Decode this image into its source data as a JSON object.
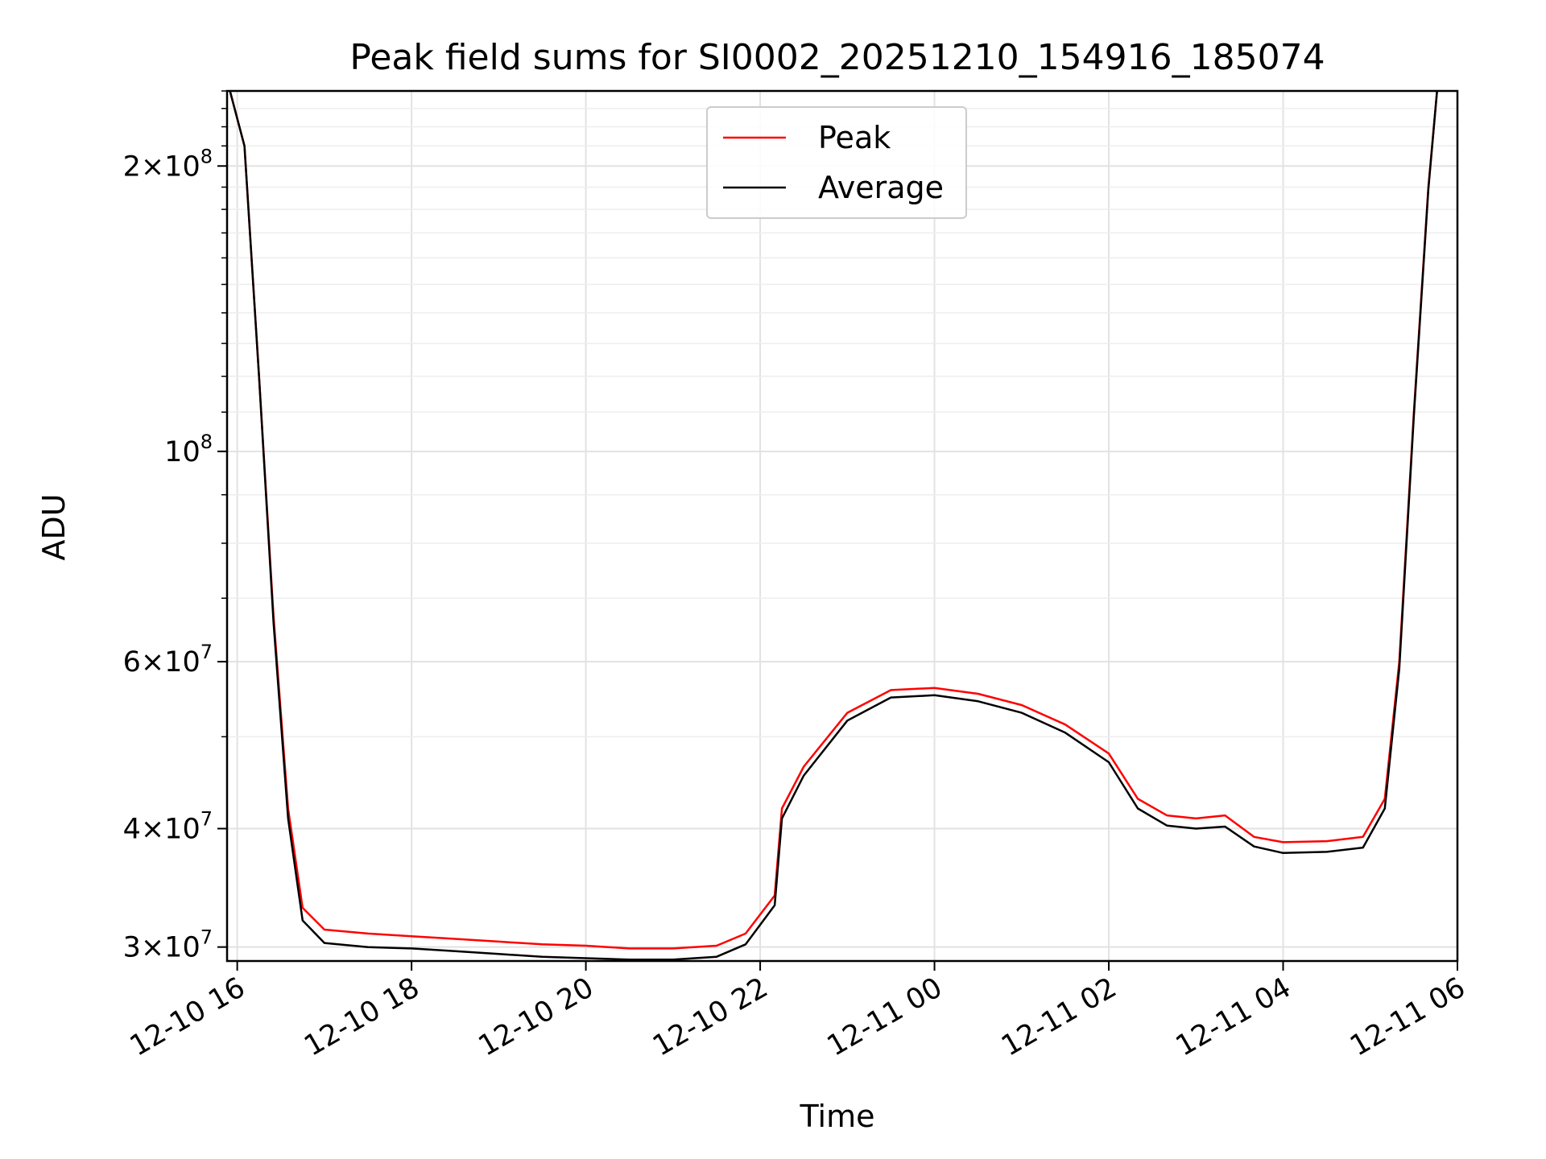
{
  "chart_data": {
    "type": "line",
    "title": "Peak field sums for SI0002_20251210_154916_185074",
    "xlabel": "Time",
    "ylabel": "ADU",
    "y_scale": "log",
    "ylim": [
      29000000,
      240000000
    ],
    "xlim": [
      "2025-12-10 15:53",
      "2025-12-11 06:00"
    ],
    "grid": true,
    "legend_position": "upper-center",
    "x_ticks": [
      "12-10 16",
      "12-10 18",
      "12-10 20",
      "12-10 22",
      "12-11 00",
      "12-11 02",
      "12-11 04",
      "12-11 06"
    ],
    "y_ticks": [
      {
        "value": 30000000,
        "mantissa": "3",
        "exp": "7"
      },
      {
        "value": 40000000,
        "mantissa": "4",
        "exp": "7"
      },
      {
        "value": 60000000,
        "mantissa": "6",
        "exp": "7"
      },
      {
        "value": 100000000,
        "mantissa": "",
        "exp": "8"
      },
      {
        "value": 200000000,
        "mantissa": "2",
        "exp": "8"
      }
    ],
    "x": [
      "2025-12-10 15:55",
      "2025-12-10 16:05",
      "2025-12-10 16:15",
      "2025-12-10 16:25",
      "2025-12-10 16:35",
      "2025-12-10 16:45",
      "2025-12-10 17:00",
      "2025-12-10 17:30",
      "2025-12-10 18:00",
      "2025-12-10 18:30",
      "2025-12-10 19:00",
      "2025-12-10 19:30",
      "2025-12-10 20:00",
      "2025-12-10 20:30",
      "2025-12-10 21:00",
      "2025-12-10 21:30",
      "2025-12-10 21:50",
      "2025-12-10 22:10",
      "2025-12-10 22:15",
      "2025-12-10 22:30",
      "2025-12-10 23:00",
      "2025-12-10 23:30",
      "2025-12-11 00:00",
      "2025-12-11 00:30",
      "2025-12-11 01:00",
      "2025-12-11 01:30",
      "2025-12-11 02:00",
      "2025-12-11 02:20",
      "2025-12-11 02:40",
      "2025-12-11 03:00",
      "2025-12-11 03:20",
      "2025-12-11 03:40",
      "2025-12-11 04:00",
      "2025-12-11 04:30",
      "2025-12-11 04:55",
      "2025-12-11 05:10",
      "2025-12-11 05:20",
      "2025-12-11 05:30",
      "2025-12-11 05:40",
      "2025-12-11 05:46"
    ],
    "series": [
      {
        "name": "Peak",
        "color": "#ff0000",
        "values": [
          240000000,
          210000000,
          120000000,
          67000000,
          42000000,
          33000000,
          31300000,
          31000000,
          30800000,
          30600000,
          30400000,
          30200000,
          30100000,
          29900000,
          29900000,
          30100000,
          31000000,
          34000000,
          42000000,
          46500000,
          53000000,
          56000000,
          56300000,
          55500000,
          54000000,
          51500000,
          48000000,
          43000000,
          41300000,
          41000000,
          41300000,
          39200000,
          38700000,
          38800000,
          39200000,
          43000000,
          60000000,
          110000000,
          190000000,
          240000000
        ]
      },
      {
        "name": "Average",
        "color": "#000000",
        "values": [
          240000000,
          210000000,
          120000000,
          66000000,
          41000000,
          32000000,
          30300000,
          30000000,
          29900000,
          29700000,
          29500000,
          29300000,
          29200000,
          29100000,
          29100000,
          29300000,
          30200000,
          33200000,
          41000000,
          45500000,
          52000000,
          55000000,
          55300000,
          54500000,
          53000000,
          50500000,
          47000000,
          42000000,
          40300000,
          40000000,
          40200000,
          38300000,
          37700000,
          37800000,
          38200000,
          42000000,
          59000000,
          109000000,
          189000000,
          240000000
        ]
      }
    ]
  }
}
